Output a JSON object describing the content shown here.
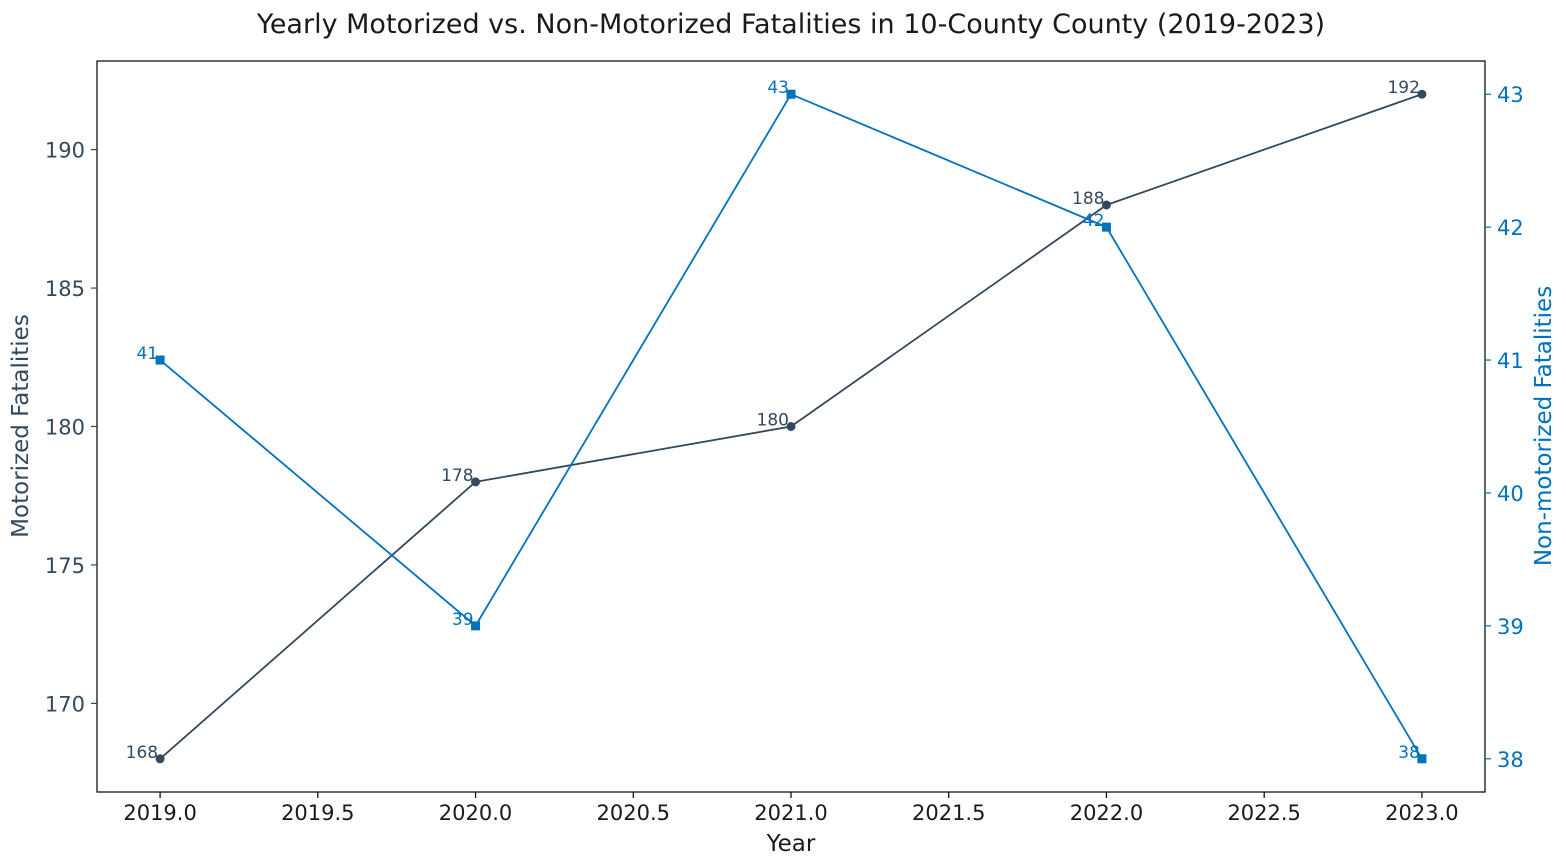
{
  "chart_data": {
    "type": "line",
    "title": "Yearly Motorized vs. Non-Motorized Fatalities in 10-County County (2019-2023)",
    "xlabel": "Year",
    "ylabel_left": "Motorized Fatalities",
    "ylabel_right": "Non-motorized Fatalities",
    "x": [
      2019,
      2020,
      2021,
      2022,
      2023
    ],
    "xlim": [
      2018.8,
      2023.2
    ],
    "xticks": [
      2019.0,
      2019.5,
      2020.0,
      2020.5,
      2021.0,
      2021.5,
      2022.0,
      2022.5,
      2023.0
    ],
    "xtick_labels": [
      "2019.0",
      "2019.5",
      "2020.0",
      "2020.5",
      "2021.0",
      "2021.5",
      "2022.0",
      "2022.5",
      "2023.0"
    ],
    "ylim_left": [
      166.8,
      193.2
    ],
    "yticks_left": [
      170,
      175,
      180,
      185,
      190
    ],
    "ytick_labels_left": [
      "170",
      "175",
      "180",
      "185",
      "190"
    ],
    "ylim_right": [
      37.75,
      43.25
    ],
    "yticks_right": [
      38,
      39,
      40,
      41,
      42,
      43
    ],
    "ytick_labels_right": [
      "38",
      "39",
      "40",
      "41",
      "42",
      "43"
    ],
    "grid": false,
    "series": [
      {
        "axis": "left",
        "values": [
          168,
          178,
          180,
          188,
          192
        ],
        "labels": [
          "168",
          "178",
          "180",
          "188",
          "192"
        ],
        "color": "#34495e",
        "marker": "circle"
      },
      {
        "axis": "right",
        "values": [
          41,
          39,
          43,
          42,
          38
        ],
        "labels": [
          "41",
          "39",
          "43",
          "42",
          "38"
        ],
        "color": "#0072bd",
        "marker": "square"
      }
    ]
  }
}
